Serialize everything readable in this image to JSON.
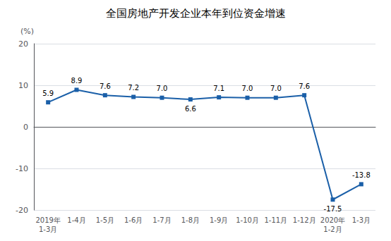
{
  "chart_data": {
    "type": "line",
    "title": "全国房地产开发企业本年到位资金增速",
    "y_label": "(%)",
    "categories": [
      "2019年\n1-3月",
      "1-4月",
      "1-5月",
      "1-6月",
      "1-7月",
      "1-8月",
      "1-9月",
      "1-10月",
      "1-11月",
      "1-12月",
      "2020年\n1-2月",
      "1-3月"
    ],
    "values": [
      5.9,
      8.9,
      7.6,
      7.2,
      7.0,
      6.6,
      7.1,
      7.0,
      7.0,
      7.6,
      -17.5,
      -13.8
    ],
    "value_labels": [
      "5.9",
      "8.9",
      "7.6",
      "7.2",
      "7.0",
      "6.6",
      "7.1",
      "7.0",
      "7.0",
      "7.6",
      "-17.5",
      "-13.8"
    ],
    "color": "#1A5FA8",
    "marker": "square",
    "ylim": [
      -20,
      20
    ],
    "yticks": [
      -20,
      -10,
      0,
      10,
      20
    ],
    "grid": true,
    "data_labels": true
  }
}
